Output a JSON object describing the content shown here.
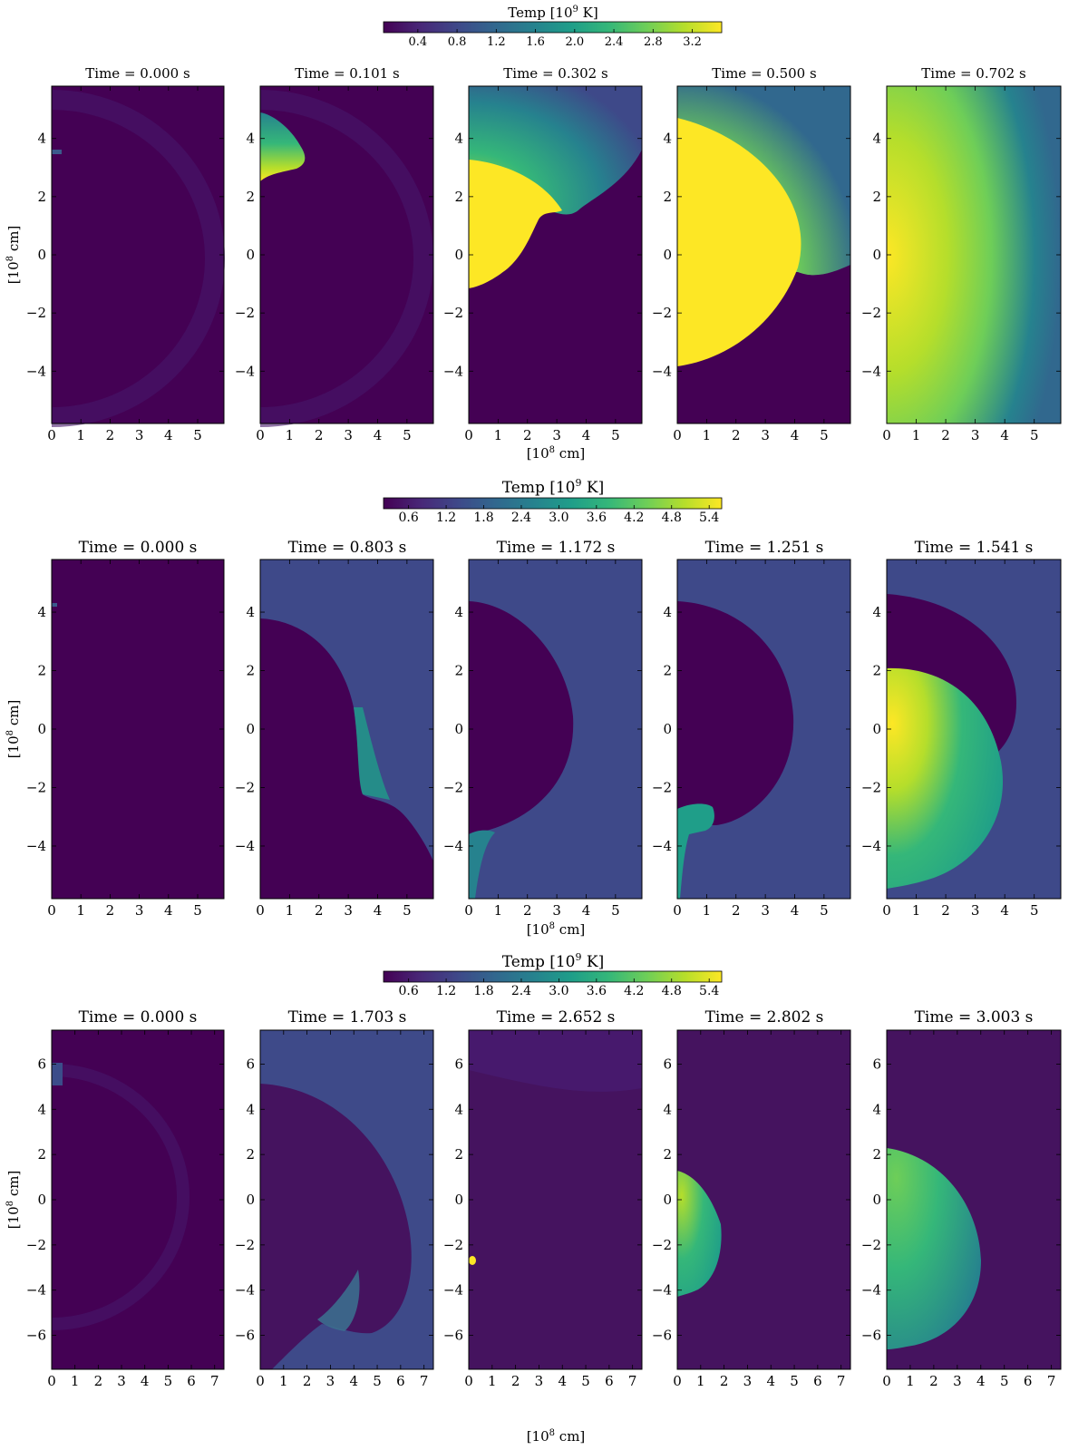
{
  "colormap": [
    "#440154",
    "#482878",
    "#3e4989",
    "#31688e",
    "#26828e",
    "#1f9e89",
    "#35b779",
    "#6ece58",
    "#b5de2b",
    "#fde725"
  ],
  "chart_data": [
    {
      "type": "heatmap",
      "title": "",
      "colorbar": {
        "label": "Temp [10",
        "label_exp": "9",
        "label_unit": " K]",
        "vmin": 0.05,
        "vmax": 3.5,
        "ticks": [
          "0.4",
          "0.8",
          "1.2",
          "1.6",
          "2.0",
          "2.4",
          "2.8",
          "3.2"
        ],
        "tick_values": [
          0.4,
          0.8,
          1.2,
          1.6,
          2.0,
          2.4,
          2.8,
          3.2
        ]
      },
      "xlabel": "[10",
      "xlabel_exp": "8",
      "xlabel_unit": " cm]",
      "ylabel": "[10",
      "ylabel_exp": "8",
      "ylabel_unit": " cm]",
      "xlim": [
        0,
        5.9
      ],
      "ylim": [
        -5.8,
        5.8
      ],
      "xticks": [
        "0",
        "1",
        "2",
        "3",
        "4",
        "5"
      ],
      "xtick_values": [
        0,
        1,
        2,
        3,
        4,
        5
      ],
      "yticks": [
        "4",
        "2",
        "0",
        "−2",
        "−4"
      ],
      "ytick_values": [
        4,
        2,
        0,
        -2,
        -4
      ],
      "panels": [
        {
          "time": "Time = 0.000 s"
        },
        {
          "time": "Time = 0.101 s"
        },
        {
          "time": "Time = 0.302 s"
        },
        {
          "time": "Time = 0.500 s"
        },
        {
          "time": "Time = 0.702 s"
        }
      ]
    },
    {
      "type": "heatmap",
      "title": "",
      "colorbar": {
        "label": "Temp [10",
        "label_exp": "9",
        "label_unit": " K]",
        "vmin": 0.2,
        "vmax": 5.6,
        "ticks": [
          "0.6",
          "1.2",
          "1.8",
          "2.4",
          "3.0",
          "3.6",
          "4.2",
          "4.8",
          "5.4"
        ],
        "tick_values": [
          0.6,
          1.2,
          1.8,
          2.4,
          3.0,
          3.6,
          4.2,
          4.8,
          5.4
        ]
      },
      "xlabel": "[10",
      "xlabel_exp": "8",
      "xlabel_unit": " cm]",
      "ylabel": "[10",
      "ylabel_exp": "8",
      "ylabel_unit": " cm]",
      "xlim": [
        0,
        5.9
      ],
      "ylim": [
        -5.8,
        5.8
      ],
      "xticks": [
        "0",
        "1",
        "2",
        "3",
        "4",
        "5"
      ],
      "xtick_values": [
        0,
        1,
        2,
        3,
        4,
        5
      ],
      "yticks": [
        "4",
        "2",
        "0",
        "−2",
        "−4"
      ],
      "ytick_values": [
        4,
        2,
        0,
        -2,
        -4
      ],
      "panels": [
        {
          "time": "Time = 0.000 s"
        },
        {
          "time": "Time = 0.803 s"
        },
        {
          "time": "Time = 1.172 s"
        },
        {
          "time": "Time = 1.251 s"
        },
        {
          "time": "Time = 1.541 s"
        }
      ]
    },
    {
      "type": "heatmap",
      "title": "",
      "colorbar": {
        "label": "Temp [10",
        "label_exp": "9",
        "label_unit": " K]",
        "vmin": 0.2,
        "vmax": 5.6,
        "ticks": [
          "0.6",
          "1.2",
          "1.8",
          "2.4",
          "3.0",
          "3.6",
          "4.2",
          "4.8",
          "5.4"
        ],
        "tick_values": [
          0.6,
          1.2,
          1.8,
          2.4,
          3.0,
          3.6,
          4.2,
          4.8,
          5.4
        ]
      },
      "xlabel": "[10",
      "xlabel_exp": "8",
      "xlabel_unit": " cm]",
      "ylabel": "[10",
      "ylabel_exp": "8",
      "ylabel_unit": " cm]",
      "xlim": [
        0,
        7.4
      ],
      "ylim": [
        -7.5,
        7.5
      ],
      "xticks": [
        "0",
        "1",
        "2",
        "3",
        "4",
        "5",
        "6",
        "7"
      ],
      "xtick_values": [
        0,
        1,
        2,
        3,
        4,
        5,
        6,
        7
      ],
      "yticks": [
        "6",
        "4",
        "2",
        "0",
        "−2",
        "−4",
        "−6"
      ],
      "ytick_values": [
        6,
        4,
        2,
        0,
        -2,
        -4,
        -6
      ],
      "panels": [
        {
          "time": "Time = 0.000 s"
        },
        {
          "time": "Time = 1.703 s"
        },
        {
          "time": "Time = 2.652 s"
        },
        {
          "time": "Time = 2.802 s"
        },
        {
          "time": "Time = 3.003 s"
        }
      ]
    }
  ]
}
